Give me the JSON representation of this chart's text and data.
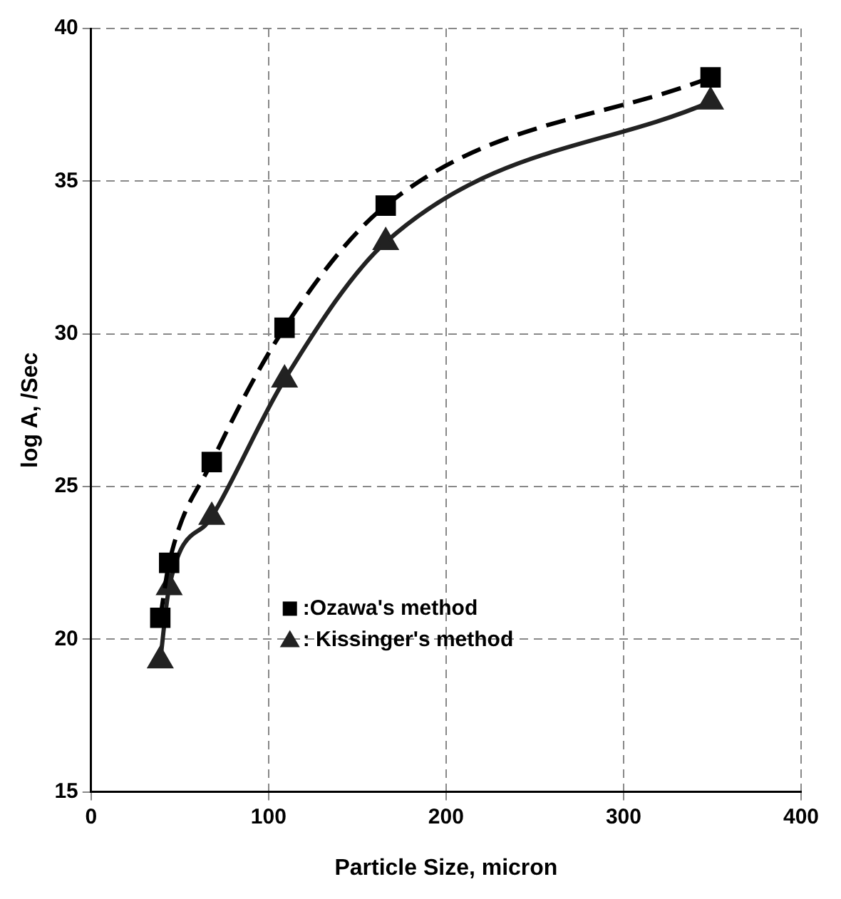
{
  "chart_data": {
    "type": "line",
    "xlabel": "Particle Size, micron",
    "ylabel": "log A, /Sec",
    "xlim": [
      0,
      400
    ],
    "xticks": [
      0,
      100,
      200,
      300,
      400
    ],
    "ylim": [
      15,
      40
    ],
    "yticks": [
      15,
      20,
      25,
      30,
      35,
      40
    ],
    "grid": true,
    "legend": "bottom left",
    "series": [
      {
        "name": ":Ozawa's method",
        "color": "#000000",
        "marker": "square",
        "line_style": "dashed",
        "x": [
          39,
          44,
          68,
          109,
          166,
          349
        ],
        "values": [
          20.7,
          22.5,
          25.8,
          30.2,
          34.2,
          38.4
        ]
      },
      {
        "name": ": Kissinger's method",
        "color": "#222222",
        "marker": "triangle",
        "line_style": "solid",
        "x": [
          39,
          44,
          68,
          109,
          166,
          349
        ],
        "values": [
          19.3,
          21.7,
          24.0,
          28.5,
          33.0,
          37.6
        ]
      }
    ]
  }
}
